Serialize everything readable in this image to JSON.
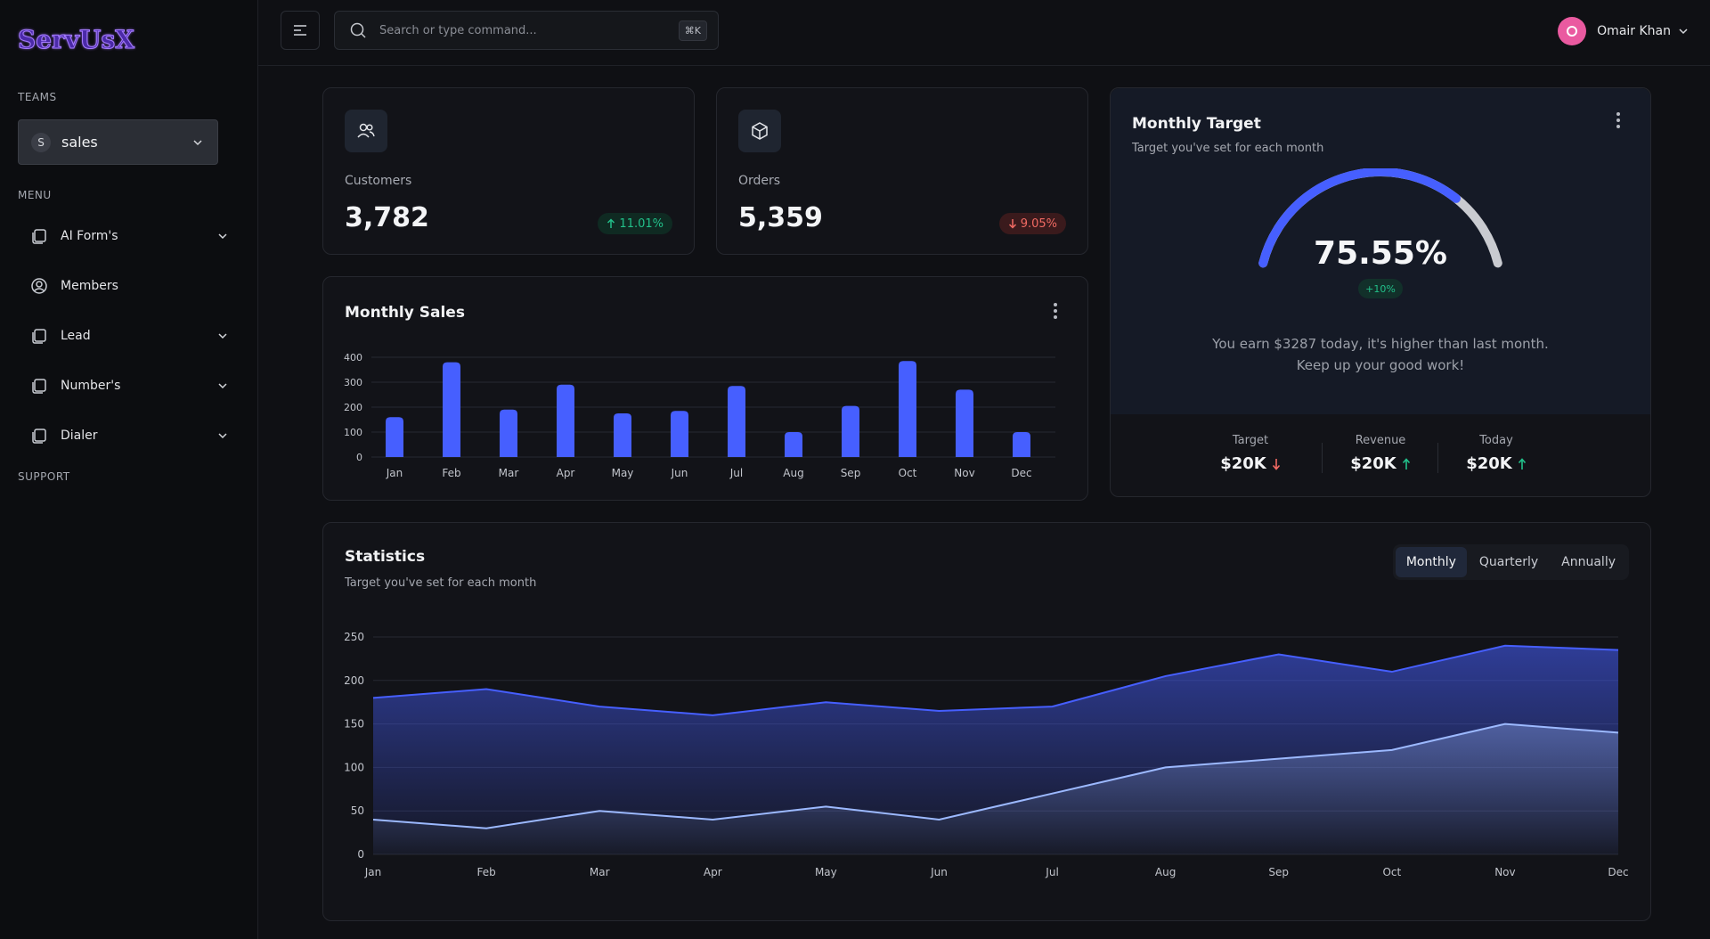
{
  "brand": {
    "logo": "ServUsX"
  },
  "sidebar": {
    "teams_label": "TEAMS",
    "team": {
      "avatar": "S",
      "name": "sales"
    },
    "menu_label": "MENU",
    "items": [
      {
        "label": "AI Form's",
        "icon": "copy-icon",
        "has_chevron": true
      },
      {
        "label": "Members",
        "icon": "user-circle-icon",
        "has_chevron": false
      },
      {
        "label": "Lead",
        "icon": "copy-icon",
        "has_chevron": true
      },
      {
        "label": "Number's",
        "icon": "copy-icon",
        "has_chevron": true
      },
      {
        "label": "Dialer",
        "icon": "copy-icon",
        "has_chevron": true
      }
    ],
    "support_label": "SUPPORT"
  },
  "topbar": {
    "search_placeholder": "Search or type command...",
    "shortcut": "⌘K",
    "user": {
      "name": "Omair Khan",
      "avatar_color": "#ea5aa0"
    }
  },
  "stats": {
    "customers": {
      "label": "Customers",
      "value": "3,782",
      "change": "11.01%",
      "direction": "up"
    },
    "orders": {
      "label": "Orders",
      "value": "5,359",
      "change": "9.05%",
      "direction": "down"
    }
  },
  "monthly_sales": {
    "title": "Monthly Sales"
  },
  "monthly_target": {
    "title": "Monthly Target",
    "subtitle": "Target you've set for each month",
    "percent": "75.55%",
    "percent_value": 75.55,
    "badge": "+10%",
    "message_line1": "You earn $3287 today, it's higher than last month.",
    "message_line2": "Keep up your good work!",
    "metrics": [
      {
        "label": "Target",
        "value": "$20K",
        "direction": "down"
      },
      {
        "label": "Revenue",
        "value": "$20K",
        "direction": "up"
      },
      {
        "label": "Today",
        "value": "$20K",
        "direction": "up"
      }
    ]
  },
  "statistics": {
    "title": "Statistics",
    "subtitle": "Target you've set for each month",
    "tabs": [
      "Monthly",
      "Quarterly",
      "Annually"
    ],
    "active_tab": "Monthly"
  },
  "colors": {
    "accent": "#465fff",
    "accent_light": "#9cb9ff",
    "up": "#22c08a",
    "down": "#f16a63"
  },
  "chart_data": [
    {
      "type": "bar",
      "categories": [
        "Jan",
        "Feb",
        "Mar",
        "Apr",
        "May",
        "Jun",
        "Jul",
        "Aug",
        "Sep",
        "Oct",
        "Nov",
        "Dec"
      ],
      "values": [
        160,
        380,
        190,
        290,
        175,
        185,
        285,
        100,
        205,
        385,
        270,
        100
      ],
      "ylim": [
        0,
        400
      ],
      "yticks": [
        0,
        100,
        200,
        300,
        400
      ],
      "grid": true
    },
    {
      "type": "area",
      "categories": [
        "Jan",
        "Feb",
        "Mar",
        "Apr",
        "May",
        "Jun",
        "Jul",
        "Aug",
        "Sep",
        "Oct",
        "Nov",
        "Dec"
      ],
      "series": [
        {
          "values": [
            180,
            190,
            170,
            160,
            175,
            165,
            170,
            205,
            230,
            210,
            240,
            235
          ],
          "color": "#465fff"
        },
        {
          "values": [
            40,
            30,
            50,
            40,
            55,
            40,
            70,
            100,
            110,
            120,
            150,
            140
          ],
          "color": "#9cb9ff"
        }
      ],
      "ylim": [
        0,
        250
      ],
      "yticks": [
        0,
        50,
        100,
        150,
        200,
        250
      ],
      "grid": true
    }
  ]
}
